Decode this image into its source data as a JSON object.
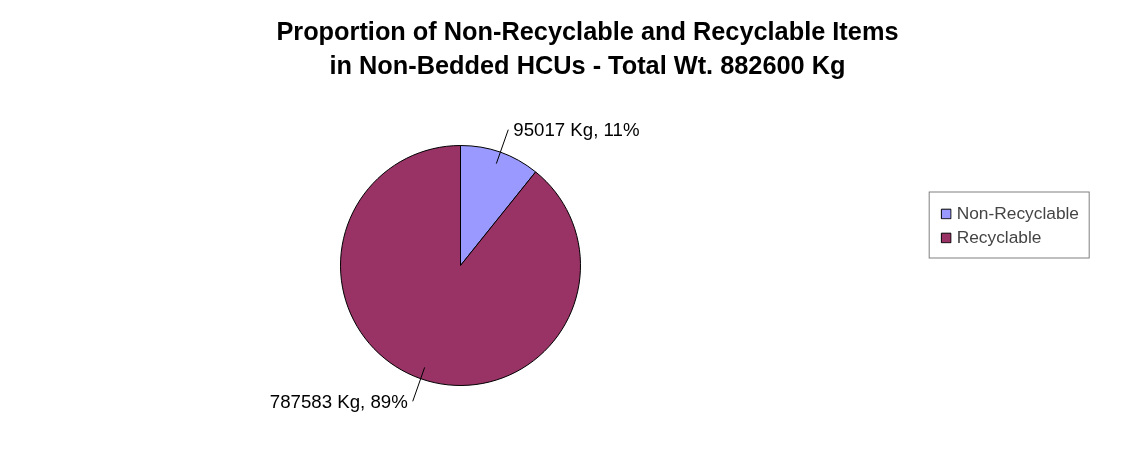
{
  "chart_data": {
    "type": "pie",
    "title": "Proportion of Non-Recyclable and Recyclable Items\nin Non-Bedded HCUs - Total Wt. 882600 Kg",
    "categories": [
      "Non-Recyclable",
      "Recyclable"
    ],
    "values": [
      95017,
      787583
    ],
    "colors": [
      "#9999ff",
      "#993366"
    ],
    "value_labels": [
      "95017 Kg, 11%",
      "787583 Kg, 89%"
    ],
    "legend": "right"
  }
}
